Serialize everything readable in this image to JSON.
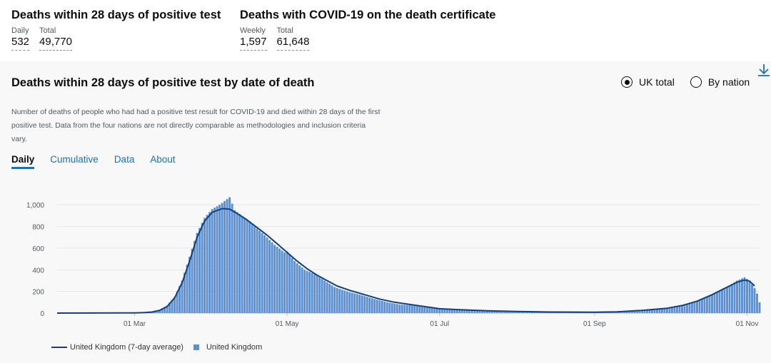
{
  "headline": [
    {
      "title": "Deaths within 28 days of positive test",
      "metrics": [
        {
          "label": "Daily",
          "value": "532"
        },
        {
          "label": "Total",
          "value": "49,770"
        }
      ]
    },
    {
      "title": "Deaths with COVID-19 on the death certificate",
      "metrics": [
        {
          "label": "Weekly",
          "value": "1,597"
        },
        {
          "label": "Total",
          "value": "61,648"
        }
      ]
    }
  ],
  "card": {
    "title": "Deaths within 28 days of positive test by date of death",
    "radios": [
      {
        "label": "UK total",
        "selected": true
      },
      {
        "label": "By nation",
        "selected": false
      }
    ],
    "description": "Number of deaths of people who had had a positive test result for COVID-19 and died within 28 days of the first positive test. Data from the four nations are not directly comparable as methodologies and inclusion criteria vary.",
    "tabs": [
      {
        "label": "Daily",
        "active": true
      },
      {
        "label": "Cumulative",
        "active": false
      },
      {
        "label": "Data",
        "active": false
      },
      {
        "label": "About",
        "active": false
      }
    ],
    "download_icon": "download-icon"
  },
  "colors": {
    "bar": "#5b8fd0",
    "line": "#12407F",
    "link": "#1d70b8",
    "grid": "#e6e6e6"
  },
  "chart_data": {
    "type": "bar",
    "x_range": [
      "2020-01-30",
      "2020-11-06"
    ],
    "ylim": [
      0,
      1100
    ],
    "y_ticks": [
      0,
      200,
      400,
      600,
      800,
      1000
    ],
    "y_tick_labels": [
      "0",
      "200",
      "400",
      "600",
      "800",
      "1,000"
    ],
    "x_ticks": [
      "2020-03-01",
      "2020-05-01",
      "2020-07-01",
      "2020-09-01",
      "2020-11-01"
    ],
    "x_tick_labels": [
      "01 Mar",
      "01 May",
      "01 Jul",
      "01 Sep",
      "01 Nov"
    ],
    "series": [
      {
        "name": "United Kingdom",
        "kind": "bar",
        "points": [
          [
            "2020-02-25",
            1
          ],
          [
            "2020-03-01",
            2
          ],
          [
            "2020-03-05",
            5
          ],
          [
            "2020-03-08",
            12
          ],
          [
            "2020-03-11",
            30
          ],
          [
            "2020-03-14",
            70
          ],
          [
            "2020-03-17",
            150
          ],
          [
            "2020-03-20",
            300
          ],
          [
            "2020-03-23",
            520
          ],
          [
            "2020-03-26",
            740
          ],
          [
            "2020-03-29",
            880
          ],
          [
            "2020-04-01",
            960
          ],
          [
            "2020-04-04",
            1000
          ],
          [
            "2020-04-08",
            1070
          ],
          [
            "2020-04-10",
            950
          ],
          [
            "2020-04-14",
            880
          ],
          [
            "2020-04-18",
            800
          ],
          [
            "2020-04-22",
            720
          ],
          [
            "2020-04-26",
            630
          ],
          [
            "2020-04-30",
            560
          ],
          [
            "2020-05-01",
            570
          ],
          [
            "2020-05-04",
            480
          ],
          [
            "2020-05-08",
            400
          ],
          [
            "2020-05-12",
            360
          ],
          [
            "2020-05-16",
            300
          ],
          [
            "2020-05-20",
            240
          ],
          [
            "2020-05-25",
            200
          ],
          [
            "2020-05-30",
            170
          ],
          [
            "2020-06-05",
            130
          ],
          [
            "2020-06-10",
            100
          ],
          [
            "2020-06-15",
            80
          ],
          [
            "2020-06-20",
            70
          ],
          [
            "2020-06-25",
            55
          ],
          [
            "2020-07-01",
            40
          ],
          [
            "2020-07-10",
            30
          ],
          [
            "2020-07-20",
            20
          ],
          [
            "2020-08-01",
            15
          ],
          [
            "2020-08-15",
            10
          ],
          [
            "2020-09-01",
            8
          ],
          [
            "2020-09-10",
            12
          ],
          [
            "2020-09-20",
            25
          ],
          [
            "2020-09-30",
            45
          ],
          [
            "2020-10-06",
            70
          ],
          [
            "2020-10-12",
            110
          ],
          [
            "2020-10-18",
            170
          ],
          [
            "2020-10-24",
            240
          ],
          [
            "2020-10-28",
            300
          ],
          [
            "2020-10-31",
            330
          ],
          [
            "2020-11-02",
            300
          ],
          [
            "2020-11-04",
            230
          ],
          [
            "2020-11-05",
            180
          ],
          [
            "2020-11-06",
            100
          ]
        ]
      },
      {
        "name": "United Kingdom (7-day average)",
        "kind": "line",
        "points": [
          [
            "2020-01-30",
            0
          ],
          [
            "2020-02-25",
            1
          ],
          [
            "2020-03-01",
            2
          ],
          [
            "2020-03-05",
            5
          ],
          [
            "2020-03-08",
            10
          ],
          [
            "2020-03-11",
            25
          ],
          [
            "2020-03-14",
            60
          ],
          [
            "2020-03-17",
            140
          ],
          [
            "2020-03-20",
            280
          ],
          [
            "2020-03-23",
            480
          ],
          [
            "2020-03-26",
            700
          ],
          [
            "2020-03-29",
            850
          ],
          [
            "2020-04-01",
            930
          ],
          [
            "2020-04-05",
            965
          ],
          [
            "2020-04-08",
            960
          ],
          [
            "2020-04-11",
            920
          ],
          [
            "2020-04-15",
            860
          ],
          [
            "2020-04-19",
            790
          ],
          [
            "2020-04-23",
            720
          ],
          [
            "2020-04-27",
            640
          ],
          [
            "2020-05-01",
            560
          ],
          [
            "2020-05-05",
            480
          ],
          [
            "2020-05-09",
            410
          ],
          [
            "2020-05-13",
            350
          ],
          [
            "2020-05-17",
            300
          ],
          [
            "2020-05-21",
            250
          ],
          [
            "2020-05-26",
            210
          ],
          [
            "2020-06-01",
            170
          ],
          [
            "2020-06-07",
            130
          ],
          [
            "2020-06-13",
            100
          ],
          [
            "2020-06-19",
            80
          ],
          [
            "2020-06-25",
            60
          ],
          [
            "2020-07-01",
            40
          ],
          [
            "2020-07-10",
            30
          ],
          [
            "2020-07-20",
            22
          ],
          [
            "2020-08-01",
            15
          ],
          [
            "2020-08-15",
            10
          ],
          [
            "2020-09-01",
            8
          ],
          [
            "2020-09-10",
            12
          ],
          [
            "2020-09-20",
            25
          ],
          [
            "2020-09-30",
            45
          ],
          [
            "2020-10-06",
            70
          ],
          [
            "2020-10-12",
            110
          ],
          [
            "2020-10-18",
            170
          ],
          [
            "2020-10-24",
            240
          ],
          [
            "2020-10-28",
            285
          ],
          [
            "2020-10-31",
            305
          ],
          [
            "2020-11-02",
            295
          ],
          [
            "2020-11-04",
            250
          ]
        ]
      }
    ],
    "legend": [
      {
        "label": "United Kingdom (7-day average)",
        "kind": "line"
      },
      {
        "label": "United Kingdom",
        "kind": "bar"
      }
    ],
    "legend_position": "bottom-left",
    "grid": "horizontal"
  }
}
